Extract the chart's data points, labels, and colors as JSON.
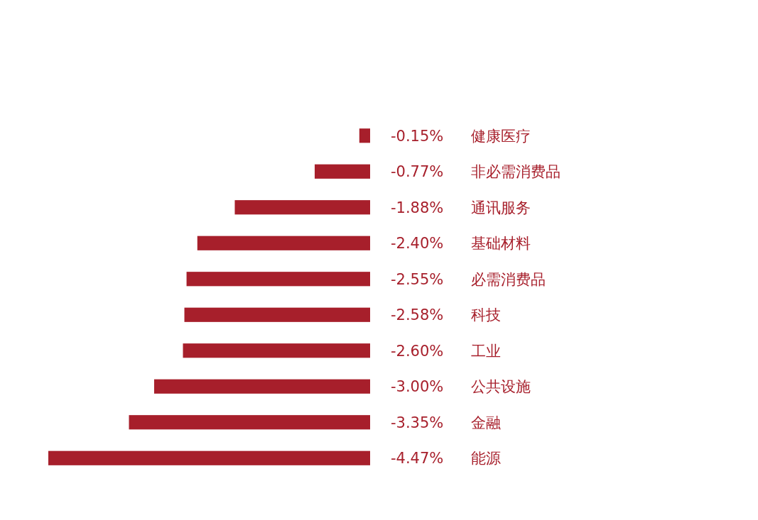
{
  "chart_data": {
    "type": "bar",
    "orientation": "horizontal",
    "categories": [
      "健康医疗",
      "非必需消费品",
      "通讯服务",
      "基础材料",
      "必需消费品",
      "科技",
      "工业",
      "公共设施",
      "金融",
      "能源"
    ],
    "values": [
      -0.15,
      -0.77,
      -1.88,
      -2.4,
      -2.55,
      -2.58,
      -2.6,
      -3.0,
      -3.35,
      -4.47
    ],
    "value_labels": [
      "-0.15%",
      "-0.77%",
      "-1.88%",
      "-2.40%",
      "-2.55%",
      "-2.58%",
      "-2.60%",
      "-3.00%",
      "-3.35%",
      "-4.47%"
    ],
    "color": "#a71f2b"
  }
}
